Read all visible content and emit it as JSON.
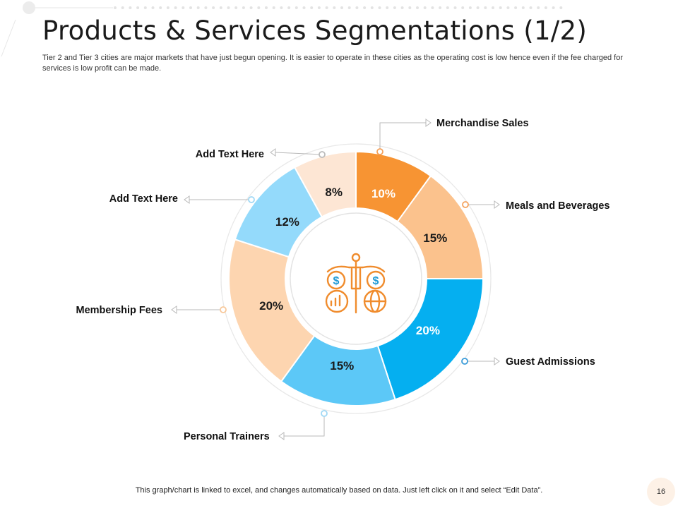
{
  "slide": {
    "title": "Products & Services Segmentations (1/2)",
    "subtitle": "Tier 2 and Tier 3 cities are major markets that have just begun opening. It is easier to operate in these cities as the operating cost is low hence even if the fee charged for services is low profit can be made.",
    "footer": "This graph/chart is linked to excel, and changes automatically based on data. Just left click on it and select “Edit Data”.",
    "page_number": "16"
  },
  "chart_data": {
    "type": "pie",
    "variant": "donut",
    "title": "",
    "center_icon": "business-growth-icon",
    "categories": [
      "Merchandise Sales",
      "Meals and Beverages",
      "Guest Admissions",
      "Personal Trainers",
      "Membership Fees",
      "Add Text Here",
      "Add Text Here"
    ],
    "values": [
      10,
      15,
      20,
      15,
      20,
      12,
      8
    ],
    "labels": [
      "10%",
      "15%",
      "20%",
      "15%",
      "20%",
      "12%",
      "8%"
    ],
    "colors": [
      "#f79433",
      "#fbc28d",
      "#05aff0",
      "#5cc8f7",
      "#fdd5b0",
      "#94dafb",
      "#fde6d4"
    ],
    "label_colors": [
      "#ffffff",
      "#1a1a1a",
      "#ffffff",
      "#1a1a1a",
      "#1a1a1a",
      "#1a1a1a",
      "#1a1a1a"
    ],
    "marker_colors": [
      "#f5a25c",
      "#f5a25c",
      "#3a9bd9",
      "#9fd8f5",
      "#f8c89a",
      "#9fd8f5",
      "#bbbbbb"
    ]
  }
}
